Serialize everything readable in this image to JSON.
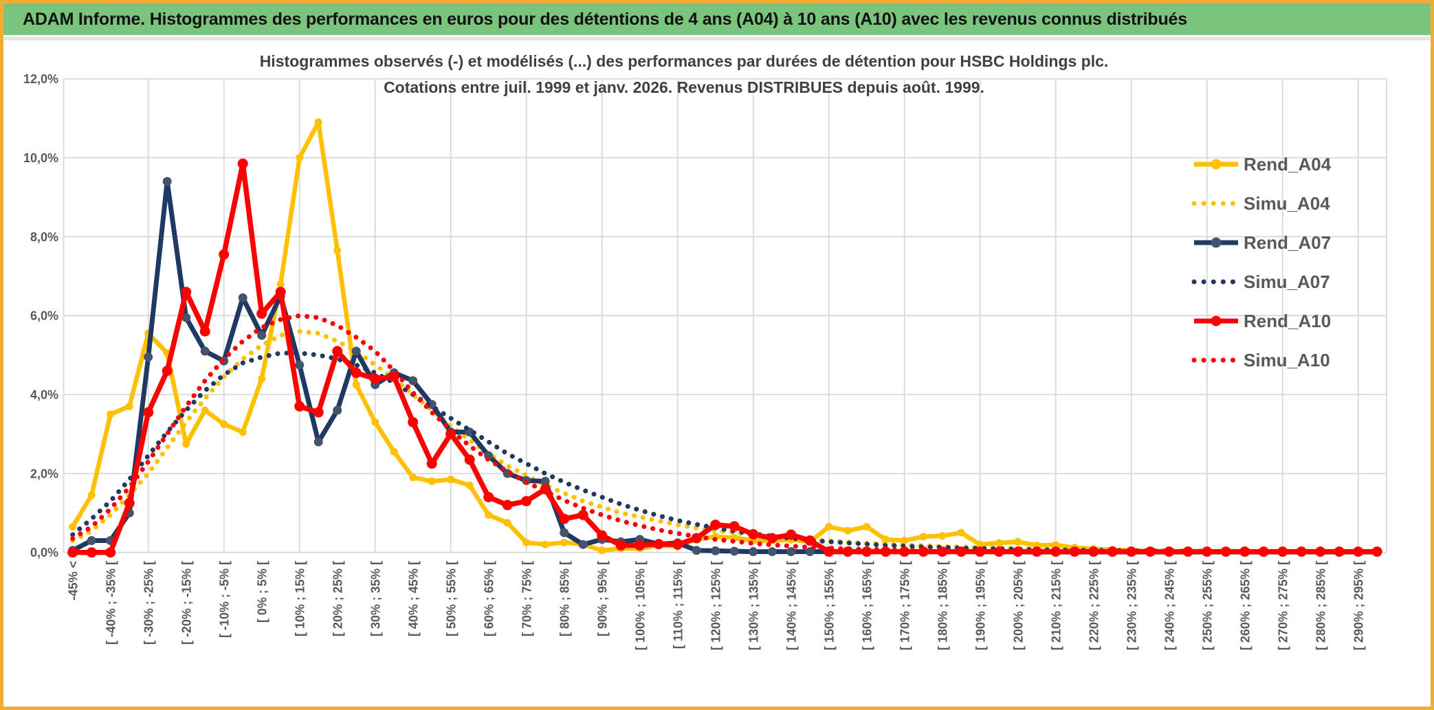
{
  "header": {
    "title": "ADAM Informe. Histogrammes des performances en euros pour des détentions de 4 ans (A04) à 10 ans (A10) avec les revenus connus distribués"
  },
  "chart_data": {
    "type": "line",
    "title_line1": "Histogrammes observés (-) et modélisés (...) des performances par durées de détention pour HSBC Holdings plc.",
    "title_line2": "Cotations entre juil. 1999 et janv. 2026. Revenus DISTRIBUES depuis août. 1999.",
    "ylim": [
      0,
      12
    ],
    "grid": true,
    "legend_position": "right",
    "y_tick_labels": [
      "0,0%",
      "2,0%",
      "4,0%",
      "6,0%",
      "8,0%",
      "10,0%",
      "12,0%"
    ],
    "n_bins": 70,
    "x_label_bin_step": 2,
    "x_labels_shown": [
      "-45% <",
      "[ -40% ; -35% [",
      "[ -30% ; -25% [",
      "[ -20% ; -15% [",
      "[ -10% ; -5% [",
      "[ 0% ; 5% [",
      "[ 10% ; 15% [",
      "[ 20% ; 25% [",
      "[ 30% ; 35% [",
      "[ 40% ; 45% [",
      "[ 50% ; 55% [",
      "[ 60% ; 65% [",
      "[ 70% ; 75% [",
      "[ 80% ; 85% [",
      "[ 90% ; 95% [",
      "[ 100% ; 105% [",
      "[ 110% ; 115% [",
      "[ 120% ; 125% [",
      "[ 130% ; 135% [",
      "[ 140% ; 145% [",
      "[ 150% ; 155% [",
      "[ 160% ; 165% [",
      "[ 170% ; 175% [",
      "[ 180% ; 185% [",
      "[ 190% ; 195% [",
      "[ 200% ; 205% [",
      "[ 210% ; 215% [",
      "[ 220% ; 225% [",
      "[ 230% ; 235% [",
      "[ 240% ; 245% [",
      "[ 250% ; 255% [",
      "[ 260% ; 265% [",
      "[ 270% ; 275% [",
      "[ 280% ; 285% [",
      "[ 290% ; 295% ["
    ],
    "series": [
      {
        "name": "Rend_A04",
        "style": "solid",
        "color": "#FFC000",
        "marker_color": "#FFC000",
        "values": [
          0.65,
          1.45,
          3.5,
          3.7,
          5.55,
          5.05,
          2.75,
          3.6,
          3.25,
          3.05,
          4.4,
          6.8,
          10.0,
          10.9,
          7.65,
          4.25,
          3.3,
          2.55,
          1.9,
          1.8,
          1.85,
          1.7,
          0.95,
          0.75,
          0.25,
          0.2,
          0.25,
          0.2,
          0.05,
          0.1,
          0.1,
          0.18,
          0.15,
          0.33,
          0.4,
          0.37,
          0.3,
          0.3,
          0.32,
          0.27,
          0.65,
          0.55,
          0.65,
          0.33,
          0.3,
          0.4,
          0.42,
          0.5,
          0.2,
          0.24,
          0.27,
          0.18,
          0.19,
          0.12,
          0.09,
          0.07,
          0.05,
          0.03,
          0.02,
          0.02,
          0.02,
          0.02,
          0.02,
          0.02,
          0.02,
          0.02,
          0.02,
          0.02,
          0.02,
          0.02
        ]
      },
      {
        "name": "Simu_A04",
        "style": "dotted",
        "color": "#FFC000",
        "marker_color": "#FFC000",
        "values": [
          0.3,
          0.55,
          0.95,
          1.45,
          2.0,
          2.65,
          3.3,
          3.9,
          4.45,
          4.9,
          5.25,
          5.5,
          5.6,
          5.55,
          5.35,
          5.1,
          4.75,
          4.4,
          4.0,
          3.6,
          3.2,
          2.85,
          2.5,
          2.2,
          1.95,
          1.7,
          1.5,
          1.3,
          1.15,
          1.0,
          0.9,
          0.8,
          0.7,
          0.62,
          0.55,
          0.5,
          0.44,
          0.4,
          0.36,
          0.32,
          0.29,
          0.26,
          0.23,
          0.21,
          0.19,
          0.17,
          0.15,
          0.14,
          0.12,
          0.11,
          0.1,
          0.09,
          0.08,
          0.07,
          0.06,
          0.06,
          0.05,
          0.05,
          0.04,
          0.04,
          0.03,
          0.03,
          0.03,
          0.02,
          0.02,
          0.02,
          0.02,
          0.01,
          0.01,
          0.01
        ]
      },
      {
        "name": "Rend_A07",
        "style": "solid",
        "color": "#1F3864",
        "marker_color": "#44546A",
        "values": [
          0.05,
          0.3,
          0.3,
          1.0,
          4.95,
          9.4,
          5.95,
          5.1,
          4.85,
          6.45,
          5.5,
          6.5,
          4.75,
          2.8,
          3.6,
          5.1,
          4.25,
          4.55,
          4.35,
          3.75,
          3.05,
          3.05,
          2.45,
          2.0,
          1.82,
          1.8,
          0.5,
          0.2,
          0.33,
          0.27,
          0.33,
          0.21,
          0.24,
          0.05,
          0.04,
          0.03,
          0.02,
          0.02,
          0.02,
          0.02,
          0.02,
          0.02,
          0.02,
          0.02,
          0.02,
          0.02,
          0.02,
          0.02,
          0.02,
          0.02,
          0.01,
          0.01,
          0.01,
          0.01,
          0.01,
          0.01,
          0.01,
          0.01,
          0.01,
          0.01,
          0.01,
          0.01,
          0.01,
          0.01,
          0.01,
          0.01,
          0.01,
          0.01,
          0.01,
          0.01
        ]
      },
      {
        "name": "Simu_A07",
        "style": "dotted",
        "color": "#1F3864",
        "marker_color": "#1F3864",
        "values": [
          0.45,
          0.85,
          1.3,
          1.85,
          2.45,
          3.05,
          3.6,
          4.1,
          4.5,
          4.8,
          4.95,
          5.05,
          5.05,
          5.0,
          4.9,
          4.75,
          4.55,
          4.3,
          4.0,
          3.7,
          3.4,
          3.1,
          2.8,
          2.5,
          2.25,
          2.0,
          1.78,
          1.58,
          1.4,
          1.22,
          1.07,
          0.93,
          0.81,
          0.71,
          0.62,
          0.54,
          0.47,
          0.41,
          0.36,
          0.31,
          0.27,
          0.24,
          0.21,
          0.18,
          0.16,
          0.14,
          0.13,
          0.11,
          0.1,
          0.09,
          0.08,
          0.07,
          0.06,
          0.06,
          0.05,
          0.05,
          0.04,
          0.04,
          0.03,
          0.03,
          0.03,
          0.02,
          0.02,
          0.02,
          0.02,
          0.02,
          0.01,
          0.01,
          0.01,
          0.01
        ]
      },
      {
        "name": "Rend_A10",
        "style": "solid",
        "color": "#FF0000",
        "marker_color": "#FF0000",
        "values": [
          0.0,
          0.0,
          0.0,
          1.25,
          3.55,
          4.6,
          6.6,
          5.6,
          7.55,
          9.85,
          6.05,
          6.6,
          3.7,
          3.55,
          5.1,
          4.55,
          4.4,
          4.45,
          3.3,
          2.25,
          3.0,
          2.35,
          1.4,
          1.2,
          1.3,
          1.6,
          0.85,
          0.95,
          0.43,
          0.18,
          0.18,
          0.21,
          0.2,
          0.36,
          0.7,
          0.66,
          0.46,
          0.36,
          0.45,
          0.3,
          0.02,
          0.02,
          0.02,
          0.02,
          0.02,
          0.02,
          0.02,
          0.02,
          0.02,
          0.02,
          0.02,
          0.02,
          0.02,
          0.02,
          0.02,
          0.02,
          0.02,
          0.02,
          0.02,
          0.02,
          0.02,
          0.02,
          0.02,
          0.02,
          0.02,
          0.02,
          0.02,
          0.02,
          0.02,
          0.02
        ]
      },
      {
        "name": "Simu_A10",
        "style": "dotted",
        "color": "#FF0000",
        "marker_color": "#FF0000",
        "values": [
          0.35,
          0.65,
          1.1,
          1.65,
          2.3,
          3.0,
          3.7,
          4.35,
          4.9,
          5.35,
          5.7,
          5.9,
          6.0,
          5.95,
          5.75,
          5.45,
          5.1,
          4.6,
          4.05,
          3.55,
          3.1,
          2.7,
          2.35,
          2.05,
          1.78,
          1.55,
          1.32,
          1.12,
          0.95,
          0.8,
          0.68,
          0.57,
          0.48,
          0.4,
          0.33,
          0.28,
          0.23,
          0.19,
          0.16,
          0.13,
          0.11,
          0.09,
          0.08,
          0.07,
          0.06,
          0.05,
          0.04,
          0.04,
          0.03,
          0.03,
          0.02,
          0.02,
          0.02,
          0.02,
          0.02,
          0.01,
          0.01,
          0.01,
          0.01,
          0.01,
          0.01,
          0.01,
          0.01,
          0.01,
          0.01,
          0.01,
          0.01,
          0.01,
          0.01,
          0.01
        ]
      }
    ]
  },
  "colors": {
    "frame_border": "#F0AD31",
    "header_bg": "#7BC47E",
    "grid": "#D9D9D9",
    "axis_text": "#595959",
    "title_text": "#404040",
    "legend_text": "#595959"
  }
}
